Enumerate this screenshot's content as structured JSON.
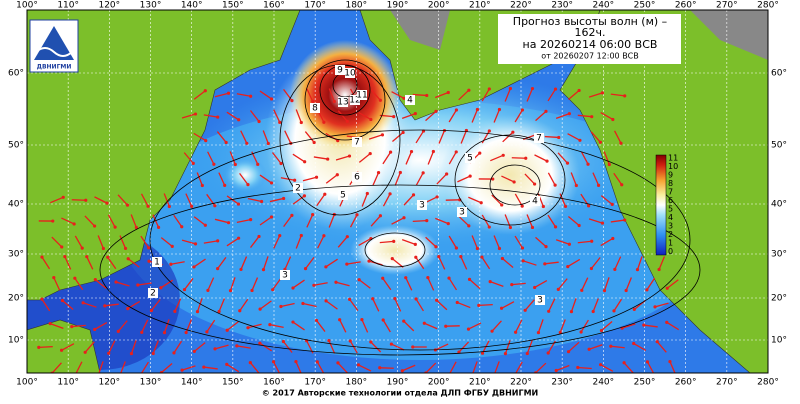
{
  "header": {
    "title_lines": [
      "Прогноз высоты волн (м) –",
      "162ч.",
      "на 20260214 06:00 ВСВ",
      "от 20260207 12:00 ВСВ"
    ],
    "logo": "ДВНИГМИ"
  },
  "axes": {
    "lon": [
      "100°",
      "110°",
      "120°",
      "130°",
      "140°",
      "150°",
      "160°",
      "170°",
      "180°",
      "190°",
      "200°",
      "210°",
      "220°",
      "230°",
      "240°",
      "250°",
      "260°",
      "270°",
      "280°"
    ],
    "lat": [
      "60°",
      "50°",
      "40°",
      "30°",
      "20°",
      "10°"
    ]
  },
  "colorbar": {
    "labels": [
      "11",
      "10",
      "9",
      "8",
      "7",
      "6",
      "5",
      "4",
      "3",
      "2",
      "1",
      "0"
    ]
  },
  "contours": [
    "13",
    "12",
    "11",
    "10",
    "9",
    "8",
    "7",
    "6",
    "5",
    "4",
    "3",
    "2",
    "1",
    "7",
    "5",
    "4",
    "3",
    "3",
    "3",
    "2"
  ],
  "footer": "© 2017 Авторские технологии отдела ДЛП ФГБУ ДВНИГМИ"
}
